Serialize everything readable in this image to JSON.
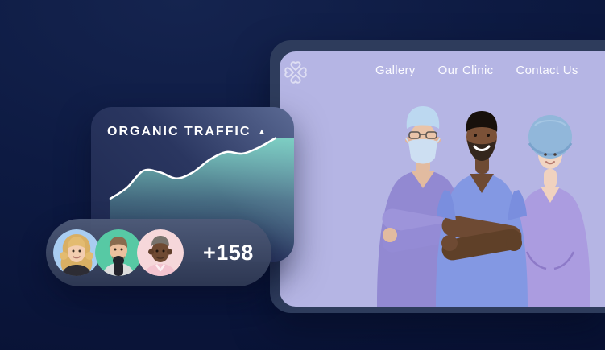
{
  "background": {
    "color_top": "#15244f",
    "color_bottom": "#081133"
  },
  "traffic_card": {
    "title": "ORGANIC TRAFFIC",
    "trend_glyph": "▲",
    "trend": "up"
  },
  "chart_data": {
    "type": "area",
    "title": "ORGANIC TRAFFIC",
    "x": [
      0,
      1,
      2,
      3,
      4,
      5,
      6,
      7,
      8,
      9,
      10
    ],
    "values": [
      41,
      48,
      59,
      58,
      54,
      58,
      66,
      71,
      70,
      74,
      80
    ],
    "ylim": [
      0,
      100
    ],
    "grid": false,
    "axes_visible": false,
    "trend": "up",
    "line_color": "#ffffff",
    "fill_color": "#7fd4c6"
  },
  "visitors_pill": {
    "count_label": "+158",
    "avatars": [
      {
        "name": "avatar-woman-blonde",
        "bg_color": "#a9cdf1"
      },
      {
        "name": "avatar-man-beard",
        "bg_color": "#57c9a4"
      },
      {
        "name": "avatar-older-man",
        "bg_color": "#f6d7da"
      }
    ]
  },
  "website": {
    "logo": {
      "name": "heart-clover-logo",
      "color": "rgba(255,255,255,0.55)"
    },
    "nav": [
      {
        "label": "Gallery"
      },
      {
        "label": "Our Clinic"
      },
      {
        "label": "Contact Us"
      }
    ],
    "hero": {
      "description": "three-medical-professionals-in-scrubs",
      "background_color": "#b5b5e4",
      "frame_color": "#2e3c5c"
    }
  }
}
